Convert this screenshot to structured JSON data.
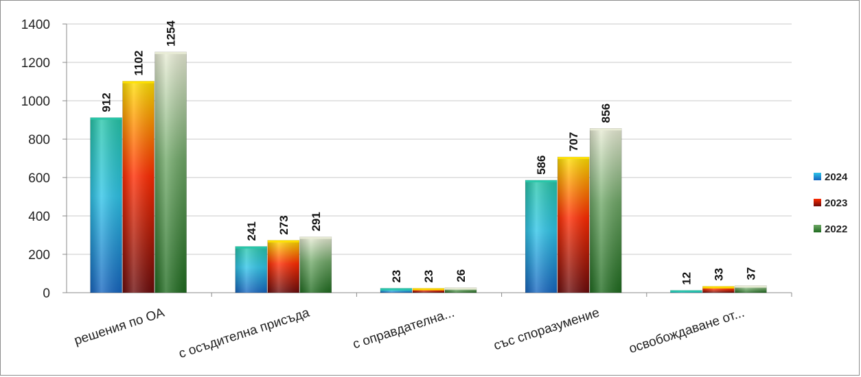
{
  "chart_data": {
    "type": "bar",
    "title": "",
    "xlabel": "",
    "ylabel": "",
    "ylim": [
      0,
      1400
    ],
    "yticks": [
      0,
      200,
      400,
      600,
      800,
      1000,
      1200,
      1400
    ],
    "grid": "horizontal",
    "legend_position": "right",
    "categories": [
      "решения по ОА",
      "с осъдителна присъда",
      "с оправдателна...",
      "със споразумение",
      "освобождаване от..."
    ],
    "series": [
      {
        "name": "2024",
        "values": [
          912,
          241,
          23,
          586,
          12
        ],
        "colors": [
          "#1565c0",
          "#2ec4e8",
          "#26c6a8"
        ]
      },
      {
        "name": "2023",
        "values": [
          1102,
          273,
          23,
          707,
          33
        ],
        "colors": [
          "#6b0a0a",
          "#ff2a00",
          "#ffe100"
        ]
      },
      {
        "name": "2022",
        "values": [
          1254,
          291,
          26,
          856,
          37
        ],
        "colors": [
          "#1f6b1f",
          "#6fa867",
          "#e9ecd6"
        ]
      }
    ]
  }
}
